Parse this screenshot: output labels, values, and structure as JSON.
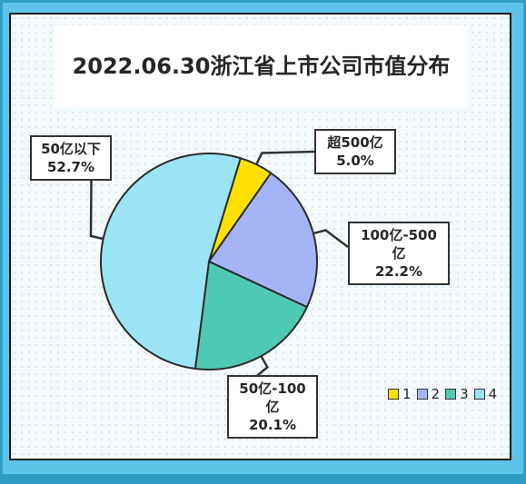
{
  "chart_data": {
    "type": "pie",
    "title": "2022.06.30浙江省上市公司市值分布",
    "slices": [
      {
        "legend": "1",
        "name_lines": [
          "超500亿"
        ],
        "percent_label": "5.0%",
        "value": 5.0,
        "color": "#FFE000"
      },
      {
        "legend": "2",
        "name_lines": [
          "100亿-500",
          "亿"
        ],
        "percent_label": "22.2%",
        "value": 22.2,
        "color": "#A5B4F7"
      },
      {
        "legend": "3",
        "name_lines": [
          "50亿-100",
          "亿"
        ],
        "percent_label": "20.1%",
        "value": 20.1,
        "color": "#4EC9B4"
      },
      {
        "legend": "4",
        "name_lines": [
          "50亿以下"
        ],
        "percent_label": "52.7%",
        "value": 52.7,
        "color": "#9AE4F5"
      }
    ],
    "legend_position": "bottom-right"
  }
}
